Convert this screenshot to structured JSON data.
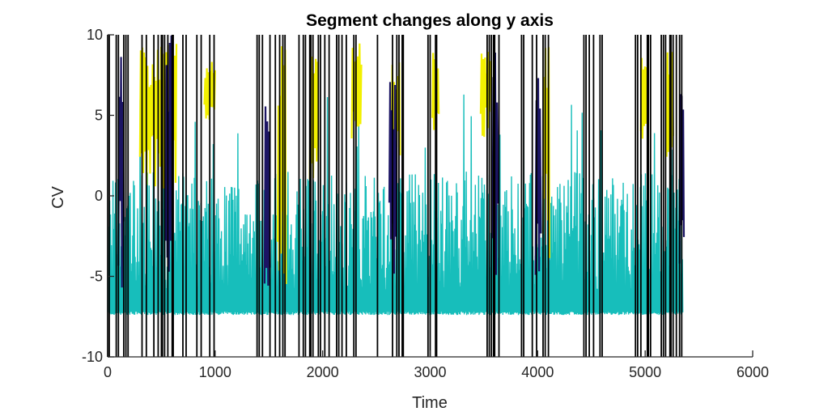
{
  "chart_data": {
    "type": "line",
    "title": "Segment changes along y axis",
    "xlabel": "Time",
    "ylabel": "CV",
    "xlim": [
      0,
      6000
    ],
    "ylim": [
      -10,
      10
    ],
    "x_ticks": [
      0,
      1000,
      2000,
      3000,
      4000,
      5000,
      6000
    ],
    "x_tick_labels": [
      "0",
      "1000",
      "2000",
      "3000",
      "4000",
      "5000",
      "6000"
    ],
    "y_ticks": [
      -10,
      -5,
      0,
      5,
      10
    ],
    "y_tick_labels": [
      "-10",
      "-5",
      "0",
      "5",
      "10"
    ],
    "grid": false,
    "box": false,
    "colors": {
      "cluster_cyan": "#17bebb",
      "cluster_yellow": "#f2f000",
      "cluster_navy": "#1b1464",
      "change_line": "#000000"
    },
    "series": [
      {
        "color": "cluster_cyan",
        "segments": [
          {
            "x": [
              0,
              5350
            ],
            "y_low": -7.2,
            "y_high_typical": 0.3,
            "y_high_max": 6.5
          }
        ]
      },
      {
        "color": "cluster_yellow",
        "segments": [
          {
            "x": [
              300,
              640
            ],
            "y": [
              0,
              9.5
            ]
          },
          {
            "x": [
              900,
              1000
            ],
            "y": [
              4.5,
              8.5
            ]
          },
          {
            "x": [
              1580,
              1660
            ],
            "y": [
              -5.5,
              9.5
            ]
          },
          {
            "x": [
              1880,
              1960
            ],
            "y": [
              0,
              9.5
            ]
          },
          {
            "x": [
              2270,
              2360
            ],
            "y": [
              3,
              9.5
            ]
          },
          {
            "x": [
              2640,
              2720
            ],
            "y": [
              2,
              8.5
            ]
          },
          {
            "x": [
              3020,
              3080
            ],
            "y": [
              4,
              9
            ]
          },
          {
            "x": [
              3470,
              3560
            ],
            "y": [
              3,
              9.5
            ]
          },
          {
            "x": [
              4050,
              4110
            ],
            "y": [
              -4,
              9.5
            ]
          },
          {
            "x": [
              4960,
              5020
            ],
            "y": [
              3,
              9
            ]
          },
          {
            "x": [
              5200,
              5260
            ],
            "y": [
              2,
              9
            ]
          }
        ]
      },
      {
        "color": "cluster_navy",
        "segments": [
          {
            "x": [
              100,
              150
            ],
            "y": [
              -6,
              10
            ]
          },
          {
            "x": [
              540,
              600
            ],
            "y": [
              -6,
              10
            ]
          },
          {
            "x": [
              1460,
              1510
            ],
            "y": [
              -6,
              7
            ]
          },
          {
            "x": [
              2620,
              2680
            ],
            "y": [
              -6,
              8
            ]
          },
          {
            "x": [
              3580,
              3630
            ],
            "y": [
              -6,
              10
            ]
          },
          {
            "x": [
              3980,
              4030
            ],
            "y": [
              -6,
              9
            ]
          },
          {
            "x": [
              5320,
              5360
            ],
            "y": [
              -6,
              7
            ]
          }
        ]
      }
    ],
    "change_points": [
      0,
      15,
      80,
      100,
      150,
      170,
      190,
      320,
      360,
      430,
      470,
      500,
      510,
      530,
      560,
      600,
      610,
      700,
      730,
      830,
      870,
      950,
      990,
      1390,
      1410,
      1440,
      1510,
      1560,
      1600,
      1630,
      1650,
      1780,
      1820,
      1840,
      1880,
      1890,
      1910,
      1960,
      1980,
      2020,
      2060,
      2130,
      2150,
      2180,
      2220,
      2290,
      2310,
      2510,
      2650,
      2690,
      2710,
      2740,
      2750,
      2980,
      3000,
      3050,
      3060,
      3530,
      3550,
      3570,
      3590,
      3600,
      3640,
      3850,
      3870,
      3950,
      3990,
      4050,
      4070,
      4100,
      4430,
      4450,
      4480,
      4520,
      4580,
      4600,
      4910,
      4930,
      4960,
      5020,
      5030,
      5050,
      5150,
      5170,
      5190,
      5230,
      5240,
      5260,
      5290,
      5320,
      5340
    ]
  }
}
